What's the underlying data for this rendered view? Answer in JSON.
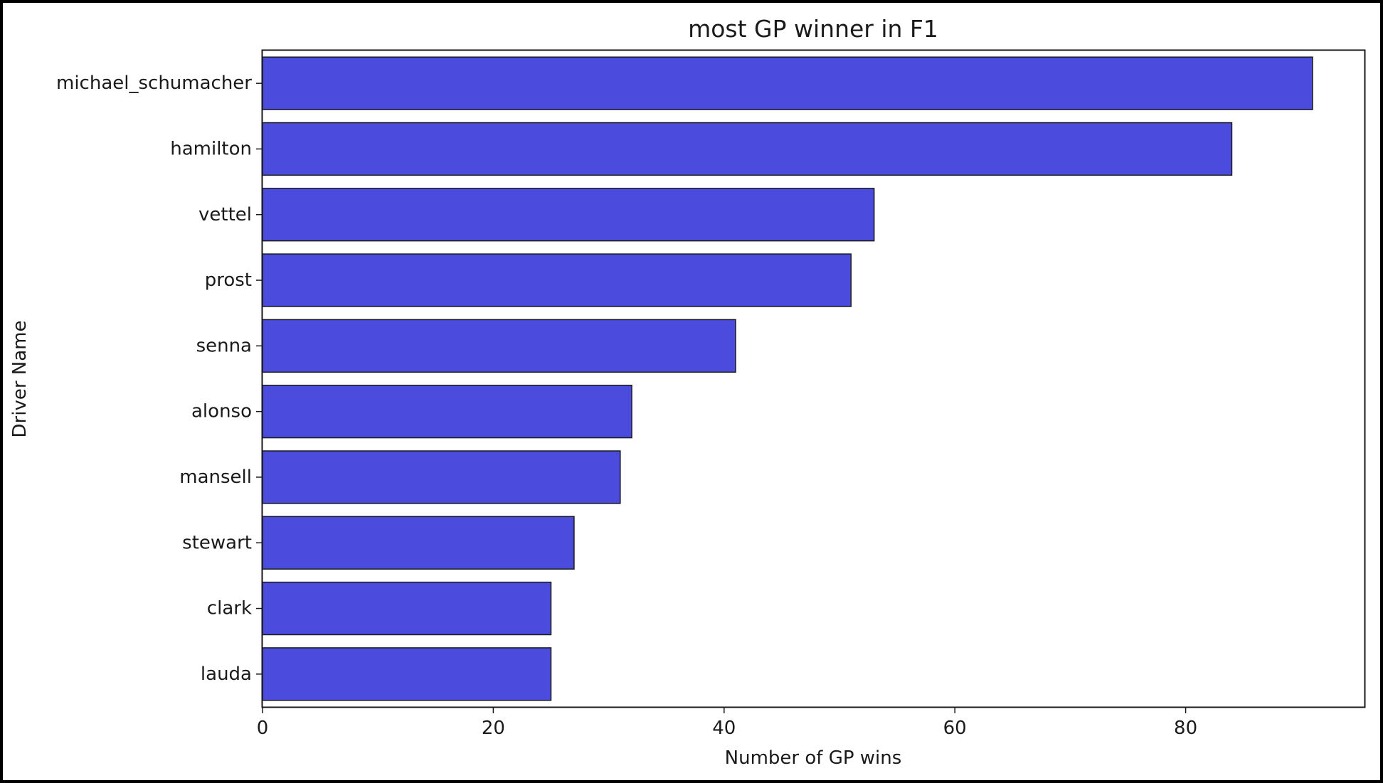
{
  "chart_data": {
    "type": "bar",
    "orientation": "horizontal",
    "title": "most GP winner in F1",
    "xlabel": "Number of GP wins",
    "ylabel": "Driver Name",
    "categories": [
      "michael_schumacher",
      "hamilton",
      "vettel",
      "prost",
      "senna",
      "alonso",
      "mansell",
      "stewart",
      "clark",
      "lauda"
    ],
    "values": [
      91,
      84,
      53,
      51,
      41,
      32,
      31,
      27,
      25,
      25
    ],
    "xlim": [
      0,
      95.5
    ],
    "xticks": [
      0,
      20,
      40,
      60,
      80
    ],
    "grid": false,
    "bar_color": "#4b4cdd",
    "edge_color": "#1a1a1a"
  }
}
